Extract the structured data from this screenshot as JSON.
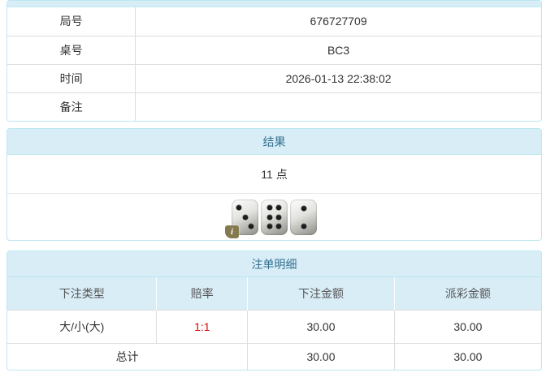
{
  "info_table": {
    "rows": [
      {
        "label": "局号",
        "value": "676727709"
      },
      {
        "label": "桌号",
        "value": "BC3"
      },
      {
        "label": "时间",
        "value": "2026-01-13 22:38:02"
      },
      {
        "label": "备注",
        "value": ""
      }
    ]
  },
  "result_panel": {
    "title": "结果",
    "points": "11 点",
    "dice": [
      3,
      6,
      2
    ],
    "info_icon_glyph": "i"
  },
  "bets_panel": {
    "title": "注单明细",
    "columns": [
      "下注类型",
      "赔率",
      "下注金额",
      "派彩金额"
    ],
    "rows": [
      {
        "bet_type": "大/小(大)",
        "odds": "1:1",
        "bet_amount": "30.00",
        "payout": "30.00"
      }
    ],
    "total": {
      "label": "总计",
      "bet_amount": "30.00",
      "payout": "30.00"
    }
  },
  "colors": {
    "panel_border": "#bce8f1",
    "heading_bg": "#d9edf7",
    "heading_text": "#31708f",
    "table_border": "#dddddd",
    "odds_color": "#e60000",
    "dice_pip": "#1c1c1c",
    "info_badge_bg": "#857a4f"
  }
}
